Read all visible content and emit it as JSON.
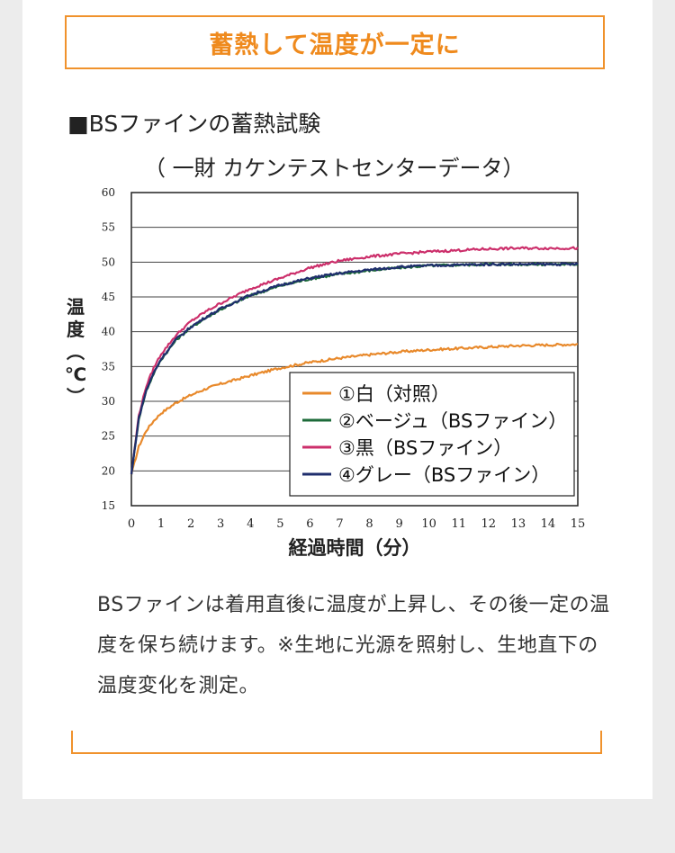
{
  "title": "蓄熱して温度が一定に",
  "section_heading": "■BSファインの蓄熱試験",
  "chart_subtitle": "（ 一財 カケンテストセンターデータ）",
  "description": "BSファインは着用直後に温度が上昇し、その後一定の温度を保ち続けます。※生地に光源を照射し、生地直下の温度変化を測定。",
  "chart_data": {
    "type": "line",
    "title": "",
    "xlabel": "経過時間（分）",
    "ylabel": "温度（℃）",
    "xlim": [
      0,
      15
    ],
    "ylim": [
      15,
      60
    ],
    "xticks": [
      "0",
      "1",
      "2",
      "3",
      "4",
      "5",
      "6",
      "7",
      "8",
      "9",
      "10",
      "11",
      "12",
      "13",
      "14",
      "15"
    ],
    "yticks": [
      "15",
      "20",
      "25",
      "30",
      "35",
      "40",
      "45",
      "50",
      "55",
      "60"
    ],
    "x": [
      0,
      0.25,
      0.5,
      0.75,
      1,
      1.5,
      2,
      2.5,
      3,
      4,
      5,
      6,
      7,
      8,
      9,
      10,
      11,
      12,
      13,
      14,
      15
    ],
    "series": [
      {
        "name": "①白（対照）",
        "color": "#e8892b",
        "values": [
          19.5,
          23.5,
          25.8,
          27.2,
          28.3,
          29.8,
          30.9,
          31.8,
          32.5,
          33.7,
          34.8,
          35.6,
          36.2,
          36.7,
          37.1,
          37.4,
          37.6,
          37.8,
          38.0,
          38.1,
          38.2
        ]
      },
      {
        "name": "②ベージュ（BSファイン）",
        "color": "#1d6b3a",
        "values": [
          19.5,
          27.5,
          31.5,
          34.0,
          36.0,
          38.8,
          40.6,
          42.0,
          43.2,
          45.2,
          46.6,
          47.6,
          48.3,
          48.8,
          49.2,
          49.5,
          49.6,
          49.7,
          49.7,
          49.7,
          49.7
        ]
      },
      {
        "name": "③黒（BSファイン）",
        "color": "#cc2f6b",
        "values": [
          19.5,
          28.0,
          32.2,
          34.8,
          36.8,
          39.5,
          41.5,
          42.9,
          44.1,
          46.2,
          47.7,
          49.2,
          50.2,
          50.8,
          51.2,
          51.5,
          51.7,
          51.9,
          52.0,
          52.0,
          52.0
        ]
      },
      {
        "name": "④グレー（BSファイン）",
        "color": "#1f2e6d",
        "values": [
          19.5,
          27.6,
          31.6,
          34.1,
          36.1,
          38.9,
          40.7,
          42.1,
          43.3,
          45.3,
          46.7,
          47.7,
          48.4,
          48.9,
          49.3,
          49.5,
          49.6,
          49.7,
          49.7,
          49.7,
          49.7
        ]
      }
    ],
    "legend_position": "bottom-right",
    "grid": "horizontal"
  }
}
